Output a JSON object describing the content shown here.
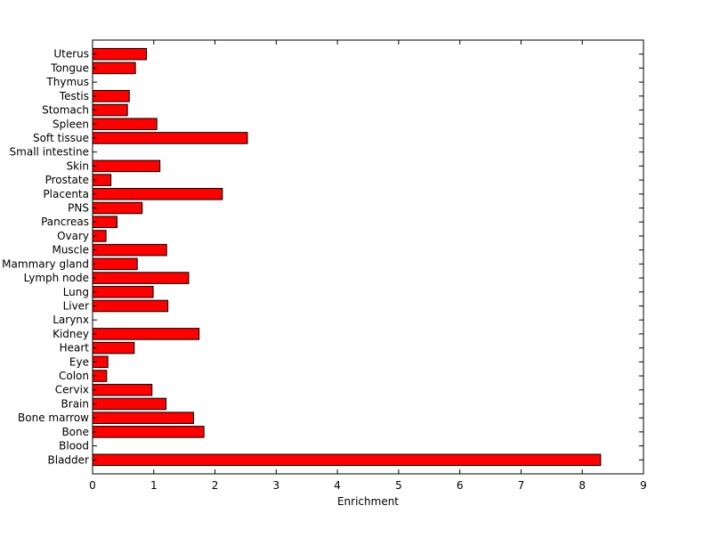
{
  "chart_data": {
    "type": "bar",
    "orientation": "horizontal",
    "categories": [
      "Bladder",
      "Blood",
      "Bone",
      "Bone marrow",
      "Brain",
      "Cervix",
      "Colon",
      "Eye",
      "Heart",
      "Kidney",
      "Larynx",
      "Liver",
      "Lung",
      "Lymph node",
      "Mammary gland",
      "Muscle",
      "Ovary",
      "Pancreas",
      "PNS",
      "Placenta",
      "Prostate",
      "Skin",
      "Small intestine",
      "Soft tissue",
      "Spleen",
      "Stomach",
      "Testis",
      "Thymus",
      "Tongue",
      "Uterus"
    ],
    "values": [
      8.3,
      0,
      1.82,
      1.65,
      1.2,
      0.97,
      0.23,
      0.25,
      0.68,
      1.74,
      0,
      1.23,
      0.99,
      1.57,
      0.73,
      1.21,
      0.22,
      0.4,
      0.81,
      2.12,
      0.3,
      1.1,
      0,
      2.53,
      1.05,
      0.57,
      0.6,
      0,
      0.7,
      0.88
    ],
    "title": "",
    "xlabel": "Enrichment",
    "ylabel": "",
    "xlim": [
      0,
      9
    ],
    "xticks": [
      "0",
      "1",
      "2",
      "3",
      "4",
      "5",
      "6",
      "7",
      "8",
      "9"
    ],
    "grid": false,
    "legend": "none",
    "colors": {
      "bar_fill": "#ff0000",
      "bar_edge": "#000000",
      "axes": "#000000",
      "background": "#ffffff"
    }
  }
}
